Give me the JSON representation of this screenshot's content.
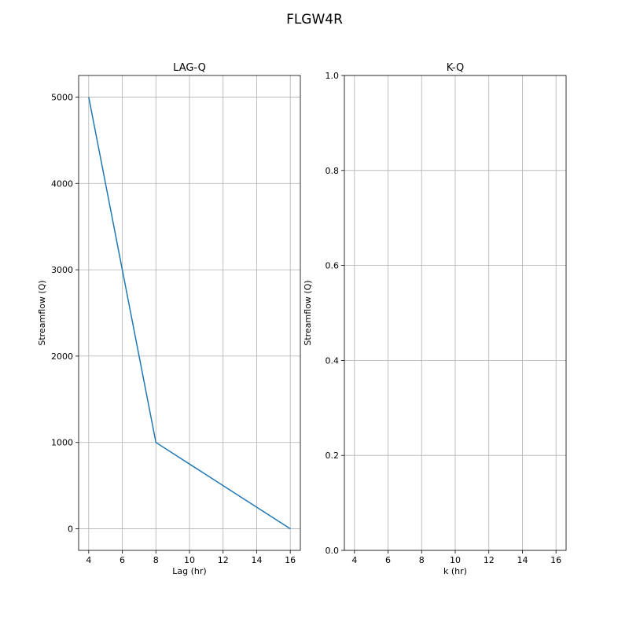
{
  "figure": {
    "title": "FLGW4R"
  },
  "chart_data": [
    {
      "type": "line",
      "title": "LAG-Q",
      "xlabel": "Lag (hr)",
      "ylabel": "Streamflow (Q)",
      "xlim": [
        3.4,
        16.6
      ],
      "ylim": [
        -250,
        5250
      ],
      "xticks": [
        4,
        6,
        8,
        10,
        12,
        14,
        16
      ],
      "yticks": [
        0,
        1000,
        2000,
        3000,
        4000,
        5000
      ],
      "grid": true,
      "series": [
        {
          "x": [
            4,
            8,
            16
          ],
          "y": [
            5000,
            1000,
            0
          ],
          "color": "#1f77b4"
        }
      ]
    },
    {
      "type": "line",
      "title": "K-Q",
      "xlabel": "k (hr)",
      "ylabel": "Streamflow (Q)",
      "xlim": [
        3.4,
        16.6
      ],
      "ylim": [
        0.0,
        1.0
      ],
      "xticks": [
        4,
        6,
        8,
        10,
        12,
        14,
        16
      ],
      "yticks": [
        0.0,
        0.2,
        0.4,
        0.6,
        0.8,
        1.0
      ],
      "ytick_labels": [
        "0.0",
        "0.2",
        "0.4",
        "0.6",
        "0.8",
        "1.0"
      ],
      "grid": true,
      "series": []
    }
  ]
}
